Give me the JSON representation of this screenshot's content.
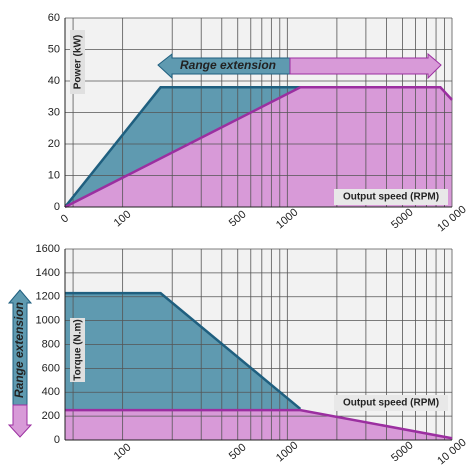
{
  "chart_data": [
    {
      "type": "area",
      "xscale": "log",
      "grid": true,
      "ylabel": "Power (kW)",
      "xlabel": "Output speed (RPM)",
      "annotation": "Range extension",
      "xlim": [
        0,
        10000
      ],
      "ylim": [
        0,
        60
      ],
      "xticks": [
        0,
        100,
        500,
        1000,
        5000,
        {
          "value": 10000,
          "label": "10 000"
        }
      ],
      "xminor_ticks": [
        50,
        200,
        300,
        400,
        600,
        700,
        800,
        900,
        2000,
        3000,
        4000,
        6000,
        7000,
        8000,
        9000
      ],
      "yticks": [
        0,
        10,
        20,
        30,
        40,
        50,
        60
      ],
      "series": [
        {
          "color": "#1f5f7f",
          "fill": "#5f9ab0",
          "x": [
            0,
            170,
            1200
          ],
          "values": [
            0,
            38,
            38
          ]
        },
        {
          "color": "#9b2fa0",
          "fill": "#d89ad8",
          "x": [
            0,
            1200,
            8500,
            10000
          ],
          "values": [
            0,
            38,
            38,
            34
          ]
        }
      ]
    },
    {
      "type": "area",
      "xscale": "log",
      "grid": true,
      "ylabel": "Torque (N.m)",
      "xlabel": "Output speed (RPM)",
      "annotation": "Range extension",
      "xlim": [
        0,
        10000
      ],
      "ylim": [
        0,
        1600
      ],
      "xticks": [
        100,
        500,
        1000,
        5000,
        {
          "value": 10000,
          "label": "10 000"
        }
      ],
      "xminor_ticks": [
        50,
        200,
        300,
        400,
        600,
        700,
        800,
        900,
        2000,
        3000,
        4000,
        6000,
        7000,
        8000,
        9000
      ],
      "yticks": [
        0,
        200,
        400,
        600,
        800,
        1000,
        1200,
        1400,
        1600
      ],
      "series": [
        {
          "color": "#1f5f7f",
          "fill": "#5f9ab0",
          "x": [
            0,
            170,
            1200
          ],
          "values": [
            1230,
            1230,
            260
          ]
        },
        {
          "color": "#9b2fa0",
          "fill": "#d89ad8",
          "x": [
            0,
            1200,
            10000
          ],
          "values": [
            250,
            250,
            15
          ]
        }
      ]
    }
  ]
}
